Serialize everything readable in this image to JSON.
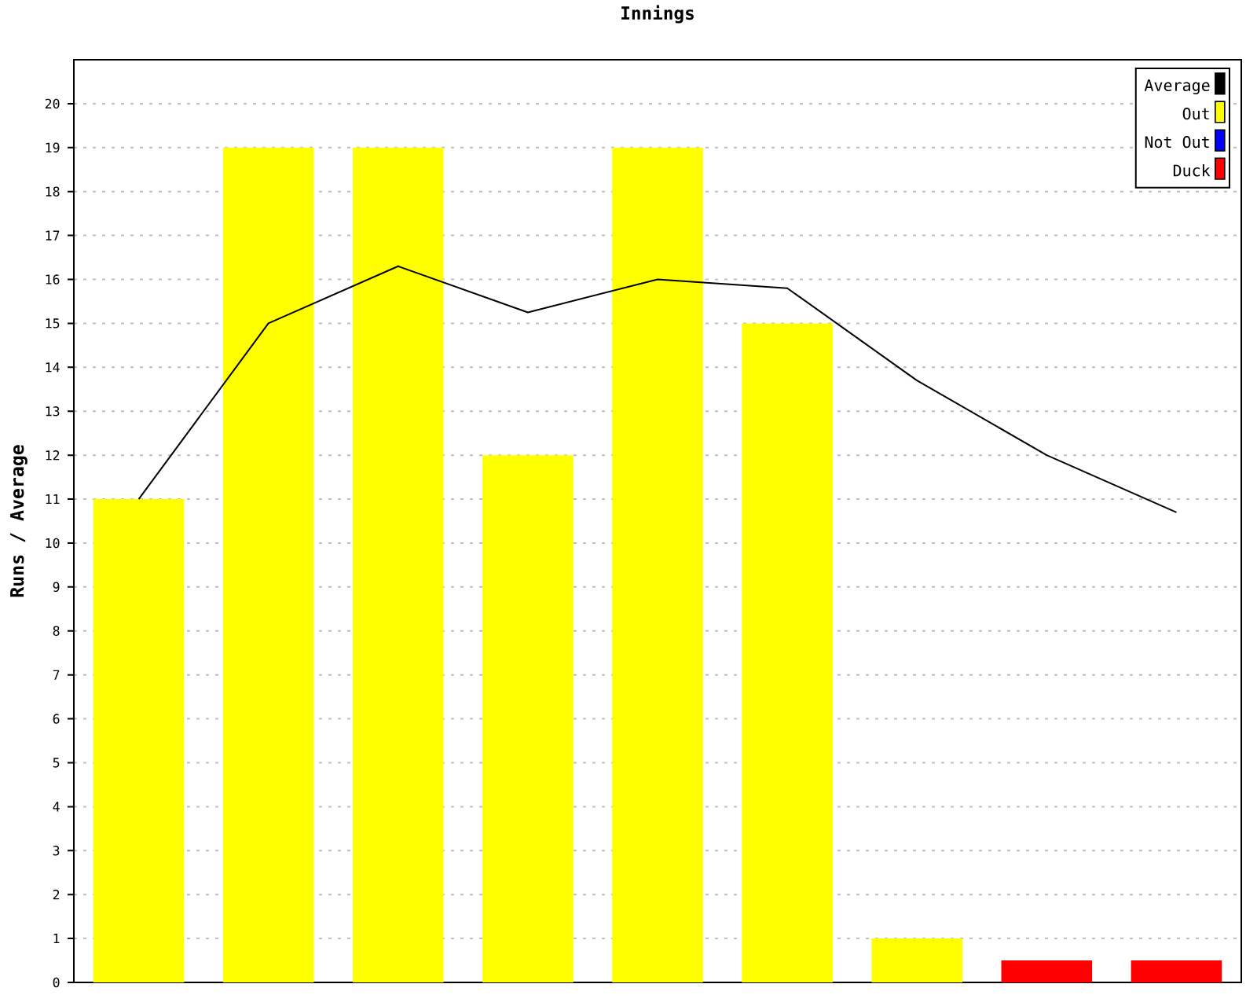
{
  "chart_data": {
    "type": "bar",
    "title": "Innings",
    "ylabel": "Runs / Average",
    "categories": [
      null,
      null,
      null,
      null,
      null,
      null,
      null,
      null,
      null
    ],
    "series": [
      {
        "name": "Average",
        "type": "line",
        "color": "#000000",
        "values": [
          11,
          15,
          16.3,
          15.25,
          16,
          15.8,
          13.7,
          12,
          10.7
        ]
      },
      {
        "name": "Out",
        "color": "#ffff00",
        "values": [
          11,
          19,
          19,
          12,
          19,
          15,
          1,
          null,
          null
        ]
      },
      {
        "name": "Not Out",
        "color": "#0000ff",
        "values": [
          null,
          null,
          null,
          null,
          null,
          null,
          null,
          null,
          null
        ]
      },
      {
        "name": "Duck",
        "color": "#ff0000",
        "values": [
          null,
          null,
          null,
          null,
          null,
          null,
          null,
          0.5,
          0.5
        ]
      }
    ],
    "ylim": [
      0,
      21
    ],
    "yticks": [
      0,
      1,
      2,
      3,
      4,
      5,
      6,
      7,
      8,
      9,
      10,
      11,
      12,
      13,
      14,
      15,
      16,
      17,
      18,
      19,
      20
    ],
    "grid": "y",
    "legend": "top right",
    "tick_labels": "y"
  }
}
